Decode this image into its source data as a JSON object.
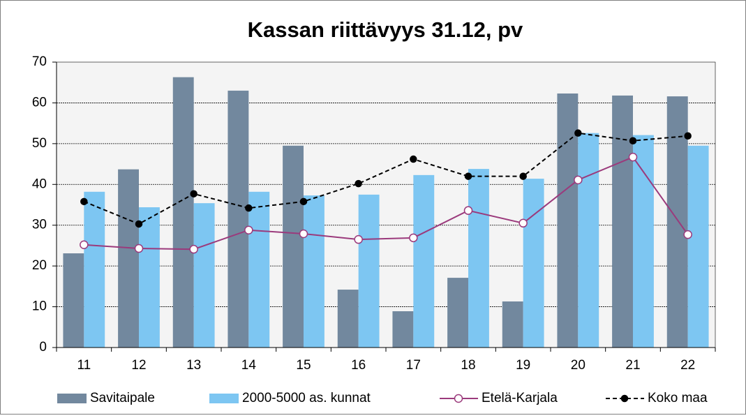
{
  "chart_data": {
    "type": "bar",
    "title": "Kassan riittävyys 31.12, pv",
    "categories": [
      "11",
      "12",
      "13",
      "14",
      "15",
      "16",
      "17",
      "18",
      "19",
      "20",
      "21",
      "22"
    ],
    "ylim": [
      0,
      70
    ],
    "yticks": [
      0,
      10,
      20,
      30,
      40,
      50,
      60,
      70
    ],
    "grid": true,
    "legend": "bottom",
    "series": [
      {
        "name": "Savitaipale",
        "type": "bar",
        "color": "#72889e",
        "values": [
          23.1,
          43.7,
          66.3,
          63.0,
          49.5,
          14.2,
          8.9,
          17.1,
          11.3,
          62.3,
          61.8,
          61.6
        ]
      },
      {
        "name": "2000-5000 as. kunnat",
        "type": "bar",
        "color": "#7dc6f2",
        "values": [
          38.2,
          34.4,
          35.4,
          38.2,
          37.3,
          37.5,
          42.3,
          43.8,
          41.4,
          52.6,
          52.1,
          49.5
        ]
      },
      {
        "name": "Etelä-Karjala",
        "type": "line",
        "color": "#9b3a7c",
        "marker": "open",
        "values": [
          25.2,
          24.3,
          24.1,
          28.8,
          27.9,
          26.5,
          26.9,
          33.6,
          30.5,
          41.1,
          46.7,
          27.7
        ]
      },
      {
        "name": "Koko maa",
        "type": "line",
        "color": "#000000",
        "marker": "filled",
        "dashed": true,
        "values": [
          35.8,
          30.3,
          37.7,
          34.2,
          35.8,
          40.2,
          46.2,
          42.0,
          42.0,
          52.6,
          50.7,
          51.9
        ]
      }
    ]
  }
}
